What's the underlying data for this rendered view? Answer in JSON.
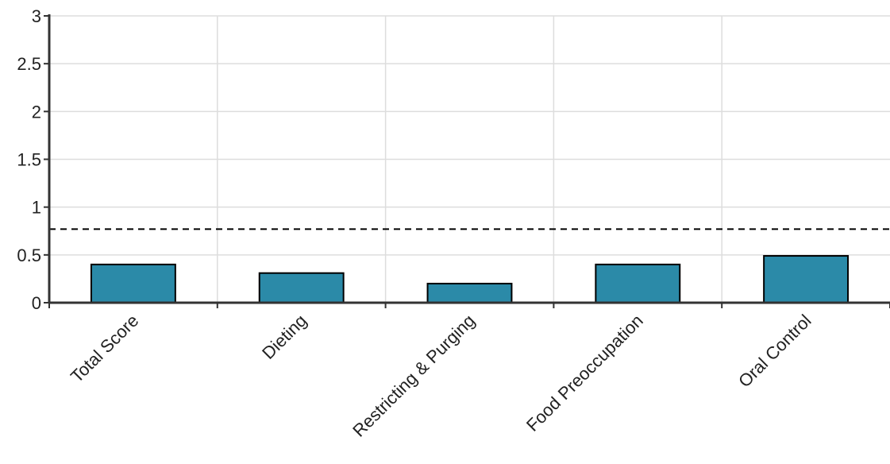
{
  "chart_data": {
    "type": "bar",
    "categories": [
      "Total Score",
      "Dieting",
      "Restricting & Purging",
      "Food Preoccupation",
      "Oral Control"
    ],
    "values": [
      0.4,
      0.31,
      0.2,
      0.4,
      0.49
    ],
    "reference_line": 0.77,
    "ylim": [
      0,
      3
    ],
    "yticks": [
      0,
      0.5,
      1,
      1.5,
      2,
      2.5,
      3
    ],
    "ytick_labels": [
      "0",
      "0.5",
      "1",
      "1.5",
      "2",
      "2.5",
      "3"
    ],
    "grid": true,
    "legend": "none",
    "colors": {
      "bar_fill": "#2b8aa8",
      "bar_stroke": "#000000",
      "grid": "#dddddd",
      "axis": "#333333",
      "reference_line": "#000000",
      "text": "#222222"
    }
  }
}
